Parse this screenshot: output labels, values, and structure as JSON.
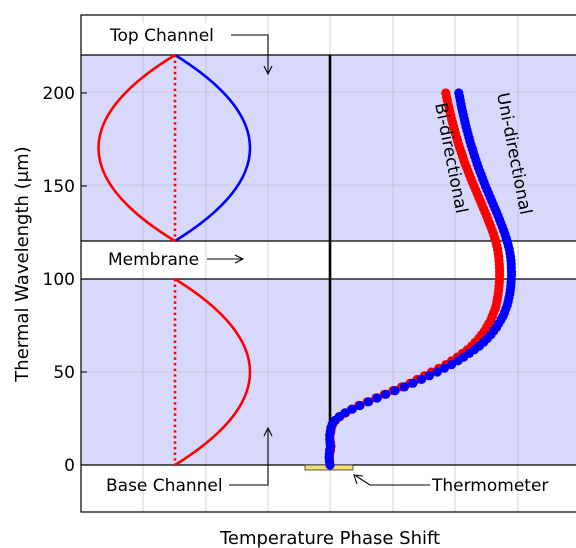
{
  "chart_data": {
    "type": "scatter",
    "title": "",
    "xlabel": "Temperature Phase Shift",
    "ylabel": "Thermal Wavelength (μm)",
    "ylim": [
      -25,
      235
    ],
    "y_ticks": [
      0,
      50,
      100,
      150,
      200
    ],
    "x_ticks_visible": false,
    "grid": true,
    "regions": [
      {
        "name": "Top Channel",
        "y_range": [
          120,
          220
        ],
        "color": "#d8d8fa"
      },
      {
        "name": "Membrane",
        "y_range": [
          100,
          120
        ],
        "color": "#ffffff"
      },
      {
        "name": "Base Channel",
        "y_range": [
          0,
          100
        ],
        "color": "#d8d8fa"
      }
    ],
    "annotations": {
      "top_channel": "Top Channel",
      "membrane": "Membrane",
      "base_channel": "Base Channel",
      "thermometer": "Thermometer"
    },
    "series": [
      {
        "name": "Bi-directional",
        "color": "#ff0000",
        "points": [
          [
            0.0,
            0
          ],
          [
            -0.3,
            2
          ],
          [
            -0.4,
            4
          ],
          [
            -0.2,
            6
          ],
          [
            0.4,
            8
          ],
          [
            0.8,
            10
          ],
          [
            0.4,
            12
          ],
          [
            0.0,
            14
          ],
          [
            0.0,
            16
          ],
          [
            0.6,
            18
          ],
          [
            1.0,
            20
          ],
          [
            2.0,
            22
          ],
          [
            4.0,
            24
          ],
          [
            7.0,
            26
          ],
          [
            11.0,
            28
          ],
          [
            15.0,
            30
          ],
          [
            20.0,
            32
          ],
          [
            26.0,
            34
          ],
          [
            32.0,
            36
          ],
          [
            38.0,
            38
          ],
          [
            44.0,
            40
          ],
          [
            50.0,
            42
          ],
          [
            56.0,
            44
          ],
          [
            61.0,
            46
          ],
          [
            66.0,
            48
          ],
          [
            71.0,
            50
          ],
          [
            76.0,
            52
          ],
          [
            81.0,
            54
          ],
          [
            85.0,
            56
          ],
          [
            89.0,
            58
          ],
          [
            92.5,
            60
          ],
          [
            96.0,
            62
          ],
          [
            99.0,
            64
          ],
          [
            101.5,
            66
          ],
          [
            104.0,
            68
          ],
          [
            106.0,
            70
          ],
          [
            108.0,
            72
          ],
          [
            109.5,
            74
          ],
          [
            111.0,
            76
          ],
          [
            112.5,
            78
          ],
          [
            113.5,
            80
          ],
          [
            114.5,
            82
          ],
          [
            115.5,
            84
          ],
          [
            116.2,
            86
          ],
          [
            116.8,
            88
          ],
          [
            117.2,
            90
          ],
          [
            117.6,
            92
          ],
          [
            118.0,
            94
          ],
          [
            118.2,
            96
          ],
          [
            118.4,
            98
          ],
          [
            118.5,
            100
          ],
          [
            118.6,
            102
          ],
          [
            118.6,
            104
          ],
          [
            118.5,
            106
          ],
          [
            118.4,
            108
          ],
          [
            118.2,
            110
          ],
          [
            118.0,
            112
          ],
          [
            117.6,
            114
          ],
          [
            117.2,
            116
          ],
          [
            116.6,
            118
          ],
          [
            116.0,
            120
          ],
          [
            115.2,
            122
          ],
          [
            114.4,
            124
          ],
          [
            113.5,
            126
          ],
          [
            112.5,
            128
          ],
          [
            111.5,
            130
          ],
          [
            110.5,
            132
          ],
          [
            109.5,
            134
          ],
          [
            108.4,
            136
          ],
          [
            107.3,
            138
          ],
          [
            106.2,
            140
          ],
          [
            105.1,
            142
          ],
          [
            104.0,
            144
          ],
          [
            102.9,
            146
          ],
          [
            101.8,
            148
          ],
          [
            100.7,
            150
          ],
          [
            99.6,
            152
          ],
          [
            98.5,
            154
          ],
          [
            97.5,
            156
          ],
          [
            96.5,
            158
          ],
          [
            95.5,
            160
          ],
          [
            94.5,
            162
          ],
          [
            93.6,
            164
          ],
          [
            92.7,
            166
          ],
          [
            91.8,
            168
          ],
          [
            90.9,
            170
          ],
          [
            90.1,
            172
          ],
          [
            89.3,
            174
          ],
          [
            88.5,
            176
          ],
          [
            87.8,
            178
          ],
          [
            87.1,
            180
          ],
          [
            86.4,
            182
          ],
          [
            85.7,
            184
          ],
          [
            85.0,
            186
          ],
          [
            84.4,
            188
          ],
          [
            83.8,
            190
          ],
          [
            83.2,
            192
          ],
          [
            82.6,
            194
          ],
          [
            82.0,
            196
          ],
          [
            81.5,
            198
          ],
          [
            81.0,
            200
          ]
        ]
      },
      {
        "name": "Uni-directional",
        "color": "#0000ff",
        "points": [
          [
            0.0,
            0
          ],
          [
            -0.4,
            2
          ],
          [
            -0.6,
            4
          ],
          [
            -0.5,
            6
          ],
          [
            -0.2,
            8
          ],
          [
            0.2,
            10
          ],
          [
            0.0,
            12
          ],
          [
            -0.2,
            14
          ],
          [
            -0.2,
            16
          ],
          [
            0.2,
            18
          ],
          [
            0.6,
            20
          ],
          [
            1.6,
            22
          ],
          [
            3.5,
            24
          ],
          [
            6.5,
            26
          ],
          [
            10.5,
            28
          ],
          [
            15.5,
            30
          ],
          [
            21.0,
            32
          ],
          [
            27.0,
            34
          ],
          [
            33.0,
            36
          ],
          [
            39.0,
            38
          ],
          [
            45.5,
            40
          ],
          [
            52.0,
            42
          ],
          [
            58.0,
            44
          ],
          [
            64.0,
            46
          ],
          [
            69.5,
            48
          ],
          [
            75.0,
            50
          ],
          [
            80.0,
            52
          ],
          [
            85.0,
            54
          ],
          [
            89.5,
            56
          ],
          [
            93.5,
            58
          ],
          [
            97.5,
            60
          ],
          [
            101.0,
            62
          ],
          [
            104.5,
            64
          ],
          [
            107.5,
            66
          ],
          [
            110.0,
            68
          ],
          [
            112.5,
            70
          ],
          [
            114.5,
            72
          ],
          [
            116.5,
            74
          ],
          [
            118.0,
            76
          ],
          [
            119.5,
            78
          ],
          [
            121.0,
            80
          ],
          [
            122.0,
            82
          ],
          [
            123.0,
            84
          ],
          [
            124.0,
            86
          ],
          [
            124.6,
            88
          ],
          [
            125.2,
            90
          ],
          [
            125.7,
            92
          ],
          [
            126.1,
            94
          ],
          [
            126.4,
            96
          ],
          [
            126.6,
            98
          ],
          [
            126.8,
            100
          ],
          [
            126.9,
            102
          ],
          [
            126.9,
            104
          ],
          [
            126.8,
            106
          ],
          [
            126.7,
            108
          ],
          [
            126.5,
            110
          ],
          [
            126.2,
            112
          ],
          [
            125.8,
            114
          ],
          [
            125.3,
            116
          ],
          [
            124.7,
            118
          ],
          [
            124.0,
            120
          ],
          [
            123.2,
            122
          ],
          [
            122.4,
            124
          ],
          [
            121.5,
            126
          ],
          [
            120.5,
            128
          ],
          [
            119.5,
            130
          ],
          [
            118.5,
            132
          ],
          [
            117.5,
            134
          ],
          [
            116.4,
            136
          ],
          [
            115.3,
            138
          ],
          [
            114.2,
            140
          ],
          [
            113.1,
            142
          ],
          [
            112.0,
            144
          ],
          [
            110.9,
            146
          ],
          [
            109.8,
            148
          ],
          [
            108.7,
            150
          ],
          [
            107.7,
            152
          ],
          [
            106.7,
            154
          ],
          [
            105.7,
            156
          ],
          [
            104.7,
            158
          ],
          [
            103.8,
            160
          ],
          [
            102.9,
            162
          ],
          [
            102.0,
            164
          ],
          [
            101.1,
            166
          ],
          [
            100.3,
            168
          ],
          [
            99.5,
            170
          ],
          [
            98.7,
            172
          ],
          [
            97.9,
            174
          ],
          [
            97.2,
            176
          ],
          [
            96.5,
            178
          ],
          [
            95.8,
            180
          ],
          [
            95.1,
            182
          ],
          [
            94.5,
            184
          ],
          [
            93.9,
            186
          ],
          [
            93.3,
            188
          ],
          [
            92.7,
            190
          ],
          [
            92.1,
            192
          ],
          [
            91.6,
            194
          ],
          [
            91.1,
            196
          ],
          [
            90.6,
            198
          ],
          [
            90.1,
            200
          ]
        ]
      }
    ]
  }
}
